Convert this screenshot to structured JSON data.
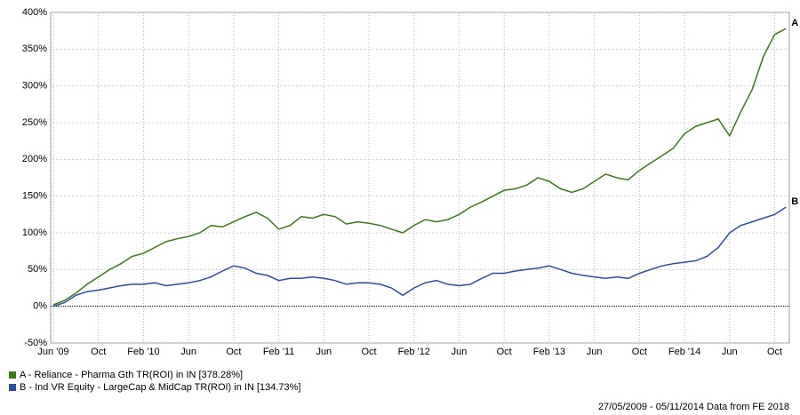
{
  "chart_data": {
    "type": "line",
    "x": [
      "2009-06",
      "2009-07",
      "2009-08",
      "2009-09",
      "2009-10",
      "2009-11",
      "2009-12",
      "2010-01",
      "2010-02",
      "2010-03",
      "2010-04",
      "2010-05",
      "2010-06",
      "2010-07",
      "2010-08",
      "2010-09",
      "2010-10",
      "2010-11",
      "2010-12",
      "2011-01",
      "2011-02",
      "2011-03",
      "2011-04",
      "2011-05",
      "2011-06",
      "2011-07",
      "2011-08",
      "2011-09",
      "2011-10",
      "2011-11",
      "2011-12",
      "2012-01",
      "2012-02",
      "2012-03",
      "2012-04",
      "2012-05",
      "2012-06",
      "2012-07",
      "2012-08",
      "2012-09",
      "2012-10",
      "2012-11",
      "2012-12",
      "2013-01",
      "2013-02",
      "2013-03",
      "2013-04",
      "2013-05",
      "2013-06",
      "2013-07",
      "2013-08",
      "2013-09",
      "2013-10",
      "2013-11",
      "2013-12",
      "2014-01",
      "2014-02",
      "2014-03",
      "2014-04",
      "2014-05",
      "2014-06",
      "2014-07",
      "2014-08",
      "2014-09",
      "2014-10",
      "2014-11"
    ],
    "series": [
      {
        "name": "A - Reliance - Pharma Gth TR(ROI) in IN [378.28%]",
        "tag": "A",
        "color": "#3a7a1a",
        "values": [
          2,
          8,
          18,
          30,
          40,
          50,
          58,
          68,
          72,
          80,
          88,
          92,
          95,
          100,
          110,
          108,
          115,
          122,
          128,
          120,
          105,
          110,
          122,
          120,
          125,
          122,
          112,
          115,
          113,
          110,
          105,
          100,
          110,
          118,
          115,
          118,
          125,
          135,
          142,
          150,
          158,
          160,
          165,
          175,
          170,
          160,
          155,
          160,
          170,
          180,
          175,
          172,
          185,
          195,
          205,
          215,
          235,
          245,
          250,
          255,
          232,
          265,
          295,
          340,
          370,
          378
        ]
      },
      {
        "name": "B - Ind VR Equity - LargeCap & MidCap TR(ROI) in IN [134.73%]",
        "tag": "B",
        "color": "#2a4da0",
        "values": [
          0,
          5,
          15,
          20,
          22,
          25,
          28,
          30,
          30,
          32,
          28,
          30,
          32,
          35,
          40,
          48,
          55,
          52,
          45,
          42,
          35,
          38,
          38,
          40,
          38,
          35,
          30,
          32,
          32,
          30,
          25,
          15,
          25,
          32,
          35,
          30,
          28,
          30,
          38,
          45,
          45,
          48,
          50,
          52,
          55,
          50,
          45,
          42,
          40,
          38,
          40,
          38,
          45,
          50,
          55,
          58,
          60,
          62,
          68,
          80,
          100,
          110,
          115,
          120,
          125,
          135
        ]
      }
    ],
    "ylim": [
      -50,
      400
    ],
    "yticks": [
      {
        "value": -50,
        "label": "-50%"
      },
      {
        "value": 0,
        "label": "0%"
      },
      {
        "value": 50,
        "label": "50%"
      },
      {
        "value": 100,
        "label": "100%"
      },
      {
        "value": 150,
        "label": "150%"
      },
      {
        "value": 200,
        "label": "200%"
      },
      {
        "value": 250,
        "label": "250%"
      },
      {
        "value": 300,
        "label": "300%"
      },
      {
        "value": 350,
        "label": "350%"
      },
      {
        "value": 400,
        "label": "400%"
      }
    ],
    "xticks": [
      {
        "value": "2009-06",
        "label": "Jun '09"
      },
      {
        "value": "2009-10",
        "label": "Oct"
      },
      {
        "value": "2010-02",
        "label": "Feb '10"
      },
      {
        "value": "2010-06",
        "label": "Jun"
      },
      {
        "value": "2010-10",
        "label": "Oct"
      },
      {
        "value": "2011-02",
        "label": "Feb '11"
      },
      {
        "value": "2011-06",
        "label": "Jun"
      },
      {
        "value": "2011-10",
        "label": "Oct"
      },
      {
        "value": "2012-02",
        "label": "Feb '12"
      },
      {
        "value": "2012-06",
        "label": "Jun"
      },
      {
        "value": "2012-10",
        "label": "Oct"
      },
      {
        "value": "2013-02",
        "label": "Feb '13"
      },
      {
        "value": "2013-06",
        "label": "Jun"
      },
      {
        "value": "2013-10",
        "label": "Oct"
      },
      {
        "value": "2014-02",
        "label": "Feb '14"
      },
      {
        "value": "2014-06",
        "label": "Jun"
      },
      {
        "value": "2014-10",
        "label": "Oct"
      }
    ],
    "grid": true,
    "footer": "27/05/2009 - 05/11/2014 Data from FE 2018"
  }
}
